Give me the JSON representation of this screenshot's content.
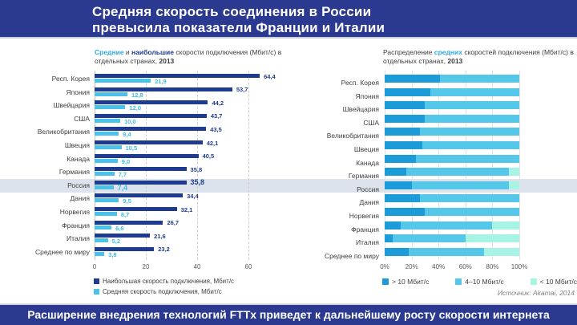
{
  "header": {
    "title_line1": "Средняя скорость соединения в России",
    "title_line2": "превысила показатели Франции и Италии"
  },
  "footer": {
    "text": "Расширение внедрения технологий FTTx приведет к дальнейшему росту скорости интернета"
  },
  "source": "Источник: Akamai, 2014",
  "colors": {
    "header_navy": "#2b3a90",
    "bar_navy": "#1f3b8f",
    "bar_cyan": "#4cc2e9",
    "stack_dark_cyan": "#1b9cd8",
    "stack_mid_cyan": "#55c8ea",
    "stack_pale_mint": "#a7f4e4",
    "highlight_band": "#dde3ec"
  },
  "subtitles": {
    "left": [
      {
        "text": "Средние",
        "style": "cyan-bold"
      },
      {
        "text": " и ",
        "style": "plain"
      },
      {
        "text": "наибольшие",
        "style": "navy-bold"
      },
      {
        "text": " скорости подключения (Мбит/с) в отдельных странах, ",
        "style": "plain"
      },
      {
        "text": "2013",
        "style": "bold"
      }
    ],
    "right": [
      {
        "text": "Распределение ",
        "style": "plain"
      },
      {
        "text": "средних",
        "style": "cyan-bold"
      },
      {
        "text": " скоростей подключения (Мбит/с) в отдельных странах, ",
        "style": "plain"
      },
      {
        "text": "2013",
        "style": "bold"
      }
    ]
  },
  "chart_data": [
    {
      "type": "bar",
      "title": "Средние и наибольшие скорости подключения (Мбит/с) в отдельных странах, 2013",
      "categories": [
        "Респ. Корея",
        "Япония",
        "Швейцария",
        "США",
        "Великобритания",
        "Швеция",
        "Канада",
        "Германия",
        "Россия",
        "Дания",
        "Норвегия",
        "Франция",
        "Италия",
        "Среднее по миру"
      ],
      "series": [
        {
          "name": "Наибольшая скорость подключения, Мбит/с",
          "color": "#1f3b8f",
          "values": [
            64.4,
            53.7,
            44.2,
            43.7,
            43.5,
            42.1,
            40.5,
            35.8,
            35.8,
            34.4,
            32.1,
            26.7,
            21.6,
            23.2
          ],
          "labels": [
            "64,4",
            "53,7",
            "44,2",
            "43,7",
            "43,5",
            "42,1",
            "40,5",
            "35,8",
            "35,8",
            "34,4",
            "32,1",
            "26,7",
            "21,6",
            "23,2"
          ]
        },
        {
          "name": "Средняя скорость подключения, Мбит/с",
          "color": "#4cc2e9",
          "values": [
            21.9,
            12.8,
            12.0,
            10.0,
            9.4,
            10.5,
            9.0,
            7.7,
            7.4,
            9.5,
            8.7,
            6.6,
            5.2,
            3.8
          ],
          "labels": [
            "21,9",
            "12,8",
            "12,0",
            "10,0",
            "9,4",
            "10,5",
            "9,0",
            "7,7",
            "7,4",
            "9,5",
            "8,7",
            "6,6",
            "5,2",
            "3,8"
          ]
        }
      ],
      "xlim": [
        0,
        70
      ],
      "ticks": [
        0,
        20,
        40,
        60
      ],
      "grid": "dashed-vertical",
      "highlight_category": "Россия",
      "legend_position": "bottom-left"
    },
    {
      "type": "stacked-bar-100",
      "title": "Распределение средних скоростей подключения (Мбит/с) в отдельных странах, 2013",
      "categories": [
        "Респ. Корея",
        "Япония",
        "Швейцария",
        "США",
        "Великобритания",
        "Швеция",
        "Канада",
        "Германия",
        "Россия",
        "Дания",
        "Норвегия",
        "Франция",
        "Италия",
        "Среднее по миру"
      ],
      "series": [
        {
          "name": "> 10 Мбит/с",
          "color": "#1b9cd8",
          "values": [
            41,
            34,
            30,
            30,
            26,
            28,
            23,
            16,
            20,
            26,
            30,
            12,
            6,
            18
          ]
        },
        {
          "name": "4–10 Мбит/с",
          "color": "#55c8ea",
          "values": [
            59,
            66,
            70,
            70,
            74,
            72,
            77,
            76,
            72,
            74,
            70,
            68,
            54,
            56
          ]
        },
        {
          "name": "< 10 Мбит/с",
          "color": "#a7f4e4",
          "values": [
            0,
            0,
            0,
            0,
            0,
            0,
            0,
            8,
            8,
            0,
            0,
            20,
            40,
            26
          ]
        }
      ],
      "xlim": [
        0,
        100
      ],
      "ticks_labels": [
        "0%",
        "20%",
        "40%",
        "60%",
        "80%",
        "100%"
      ],
      "ticks": [
        0,
        20,
        40,
        60,
        80,
        100
      ],
      "grid": "solid-vertical",
      "highlight_category": "Россия",
      "legend_position": "bottom"
    }
  ]
}
